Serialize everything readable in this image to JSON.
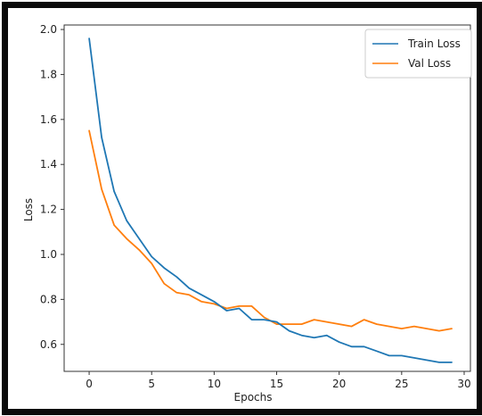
{
  "chart_data": {
    "type": "line",
    "xlabel": "Epochs",
    "ylabel": "Loss",
    "xlim": [
      -2,
      30.5
    ],
    "ylim": [
      0.48,
      2.02
    ],
    "xticks": [
      0,
      5,
      10,
      15,
      20,
      25,
      30
    ],
    "yticks": [
      0.6,
      0.8,
      1.0,
      1.2,
      1.4,
      1.6,
      1.8,
      2.0
    ],
    "xtick_labels": [
      "0",
      "5",
      "10",
      "15",
      "20",
      "25",
      "30"
    ],
    "ytick_labels": [
      "0.6",
      "0.8",
      "1.0",
      "1.2",
      "1.4",
      "1.6",
      "1.8",
      "2.0"
    ],
    "grid": false,
    "legend_position": "top-right",
    "x": [
      0,
      1,
      2,
      3,
      4,
      5,
      6,
      7,
      8,
      9,
      10,
      11,
      12,
      13,
      14,
      15,
      16,
      17,
      18,
      19,
      20,
      21,
      22,
      23,
      24,
      25,
      26,
      27,
      28,
      29
    ],
    "series": [
      {
        "name": "Train Loss",
        "color": "#1f77b4",
        "values": [
          1.96,
          1.52,
          1.28,
          1.15,
          1.07,
          0.99,
          0.94,
          0.9,
          0.85,
          0.82,
          0.79,
          0.75,
          0.76,
          0.71,
          0.71,
          0.7,
          0.66,
          0.64,
          0.63,
          0.64,
          0.61,
          0.59,
          0.59,
          0.57,
          0.55,
          0.55,
          0.54,
          0.53,
          0.52,
          0.52
        ]
      },
      {
        "name": "Val Loss",
        "color": "#ff7f0e",
        "values": [
          1.55,
          1.29,
          1.13,
          1.07,
          1.02,
          0.96,
          0.87,
          0.83,
          0.82,
          0.79,
          0.78,
          0.76,
          0.77,
          0.77,
          0.72,
          0.69,
          0.69,
          0.69,
          0.71,
          0.7,
          0.69,
          0.68,
          0.71,
          0.69,
          0.68,
          0.67,
          0.68,
          0.67,
          0.66,
          0.67
        ]
      }
    ]
  }
}
